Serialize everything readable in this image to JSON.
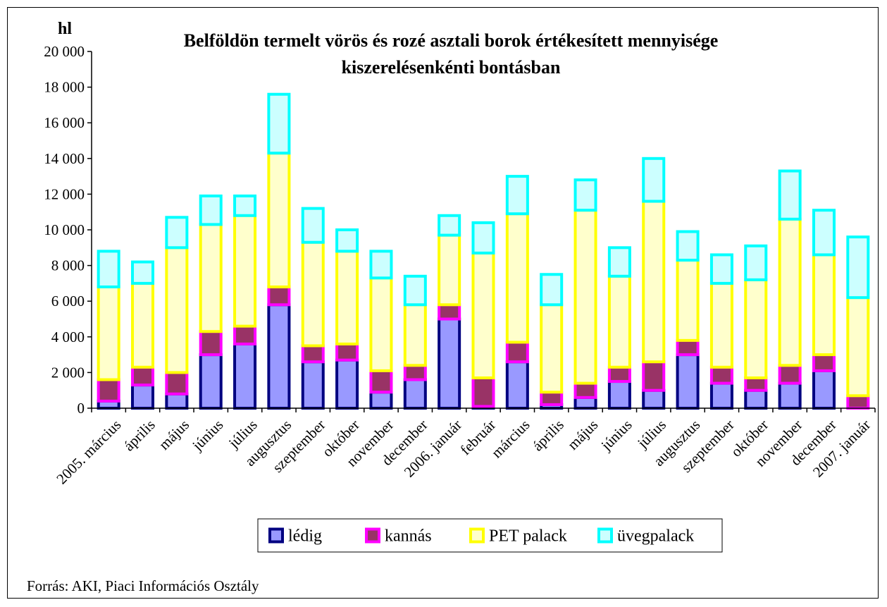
{
  "chart_data": {
    "type": "bar",
    "stacked": true,
    "title_line1": "Belföldön termelt vörös és rozé asztali borok értékesített mennyisége",
    "title_line2": "kiszerelésenkénti bontásban",
    "unit_label": "hl",
    "ylim": [
      0,
      20000
    ],
    "ytick_step": 2000,
    "ytick_labels": [
      "0",
      "2 000",
      "4 000",
      "6 000",
      "8 000",
      "10 000",
      "12 000",
      "14 000",
      "16 000",
      "18 000",
      "20 000"
    ],
    "grid": false,
    "legend_position": "bottom",
    "categories": [
      "2005. március",
      "április",
      "május",
      "június",
      "július",
      "augusztus",
      "szeptember",
      "október",
      "november",
      "december",
      "2006. január",
      "február",
      "március",
      "április",
      "május",
      "június",
      "július",
      "augusztus",
      "szeptember",
      "október",
      "november",
      "december",
      "2007. január"
    ],
    "series": [
      {
        "name": "lédig",
        "fill": "#9999ff",
        "stroke": "#000080",
        "values": [
          400,
          1300,
          800,
          3000,
          3600,
          5800,
          2600,
          2700,
          900,
          1600,
          5000,
          100,
          2600,
          200,
          600,
          1500,
          1000,
          3000,
          1400,
          1000,
          1400,
          2100,
          0
        ]
      },
      {
        "name": "kannás",
        "fill": "#993366",
        "stroke": "#ff00ff",
        "values": [
          1200,
          1000,
          1200,
          1300,
          1000,
          1000,
          900,
          900,
          1200,
          800,
          800,
          1600,
          1100,
          700,
          800,
          800,
          1600,
          800,
          900,
          700,
          1000,
          900,
          700
        ]
      },
      {
        "name": "PET palack",
        "fill": "#ffffcc",
        "stroke": "#ffff00",
        "values": [
          5200,
          4700,
          7000,
          6000,
          6200,
          7500,
          5800,
          5200,
          5200,
          3400,
          3900,
          7000,
          7200,
          4900,
          9700,
          5100,
          9000,
          4500,
          4700,
          5500,
          8200,
          5600,
          5500
        ]
      },
      {
        "name": "üvegpalack",
        "fill": "#ccffff",
        "stroke": "#00ffff",
        "values": [
          2000,
          1200,
          1700,
          1600,
          1100,
          3300,
          1900,
          1200,
          1500,
          1600,
          1100,
          1700,
          2100,
          1700,
          1700,
          1600,
          2400,
          1600,
          1600,
          1900,
          2700,
          2500,
          3400
        ]
      }
    ]
  },
  "source": "Forrás: AKI, Piaci Információs Osztály"
}
